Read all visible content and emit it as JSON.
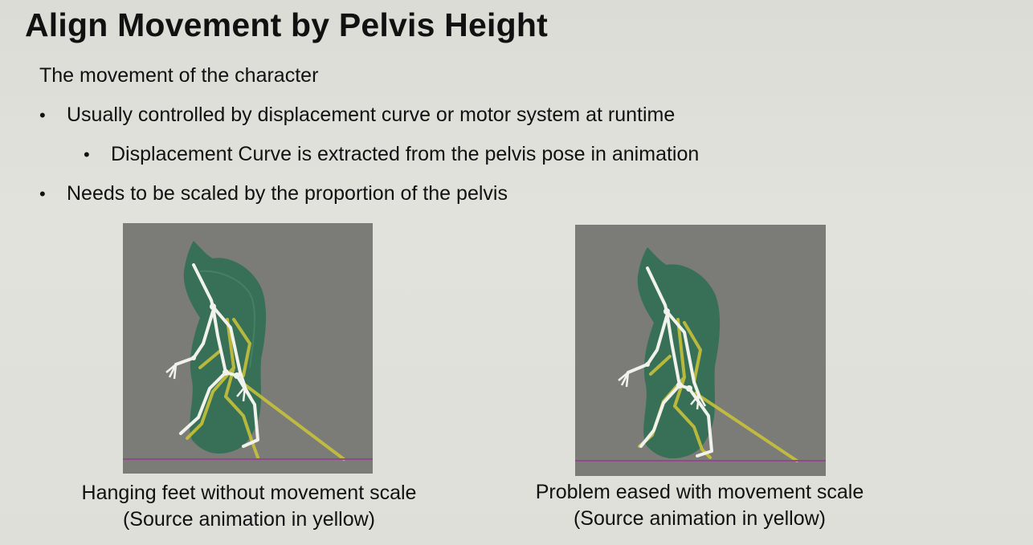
{
  "slide": {
    "title": "Align Movement by Pelvis Height",
    "intro": "The movement of the character",
    "bullets": [
      {
        "text": "Usually controlled by displacement curve or motor system at runtime",
        "level": 1
      },
      {
        "text": "Displacement Curve is extracted from the pelvis pose in animation",
        "level": 2
      },
      {
        "text": "Needs to be scaled by the proportion of the pelvis",
        "level": 1
      }
    ],
    "bullet_glyph": "•"
  },
  "figures": [
    {
      "caption_line1": "Hanging feet without movement scale",
      "caption_line2": "(Source animation in yellow)"
    },
    {
      "caption_line1": "Problem eased with movement scale",
      "caption_line2": "(Source animation in yellow)"
    }
  ],
  "colors": {
    "viewport_bg": "#7b7b78",
    "mesh": "#2e6e52",
    "skeleton": "#f2f2ec",
    "source_skeleton": "#c6c23a",
    "ground_line": "#8e4a8a"
  }
}
